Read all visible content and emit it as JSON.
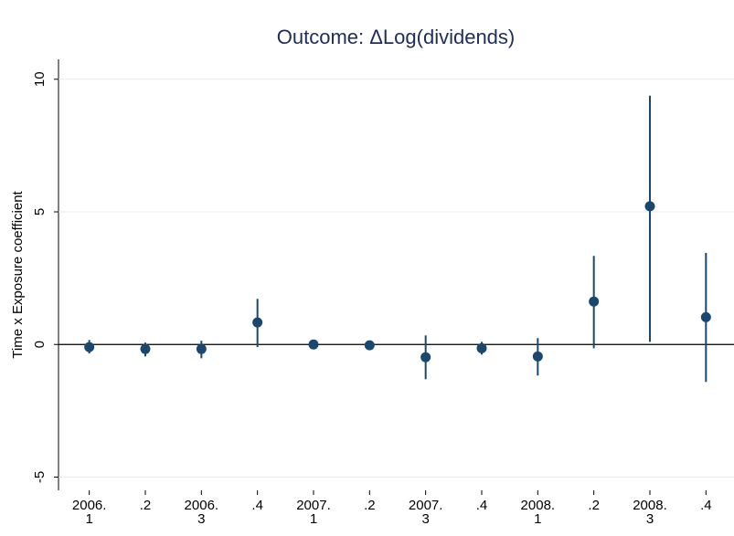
{
  "chart_data": {
    "type": "errorbar",
    "title": "Outcome: ΔLog(dividends)",
    "y_label": "Time x Exposure coefficient",
    "categories": [
      [
        "2006.",
        "1"
      ],
      [
        ".2"
      ],
      [
        "2006.",
        "3"
      ],
      [
        ".4"
      ],
      [
        "2007.",
        "1"
      ],
      [
        ".2"
      ],
      [
        "2007.",
        "3"
      ],
      [
        ".4"
      ],
      [
        "2008.",
        "1"
      ],
      [
        ".2"
      ],
      [
        "2008.",
        "3"
      ],
      [
        ".4"
      ]
    ],
    "series": [
      {
        "color": "#1a476f",
        "values": [
          -0.1,
          -0.17,
          -0.17,
          0.83,
          0.0,
          -0.03,
          -0.48,
          -0.14,
          -0.45,
          1.62,
          5.21,
          1.03
        ],
        "ci_lower": [
          -0.34,
          -0.45,
          -0.52,
          -0.1,
          -0.05,
          -0.08,
          -1.31,
          -0.38,
          -1.17,
          -0.14,
          0.1,
          -1.41
        ],
        "ci_upper": [
          0.17,
          0.07,
          0.14,
          1.72,
          0.05,
          0.02,
          0.34,
          0.1,
          0.24,
          3.34,
          9.38,
          3.45
        ]
      }
    ],
    "ylim": [
      -5.5,
      10.75
    ],
    "yticks": [
      -5,
      0,
      5,
      10
    ],
    "grid": true,
    "reference_line": 0
  }
}
